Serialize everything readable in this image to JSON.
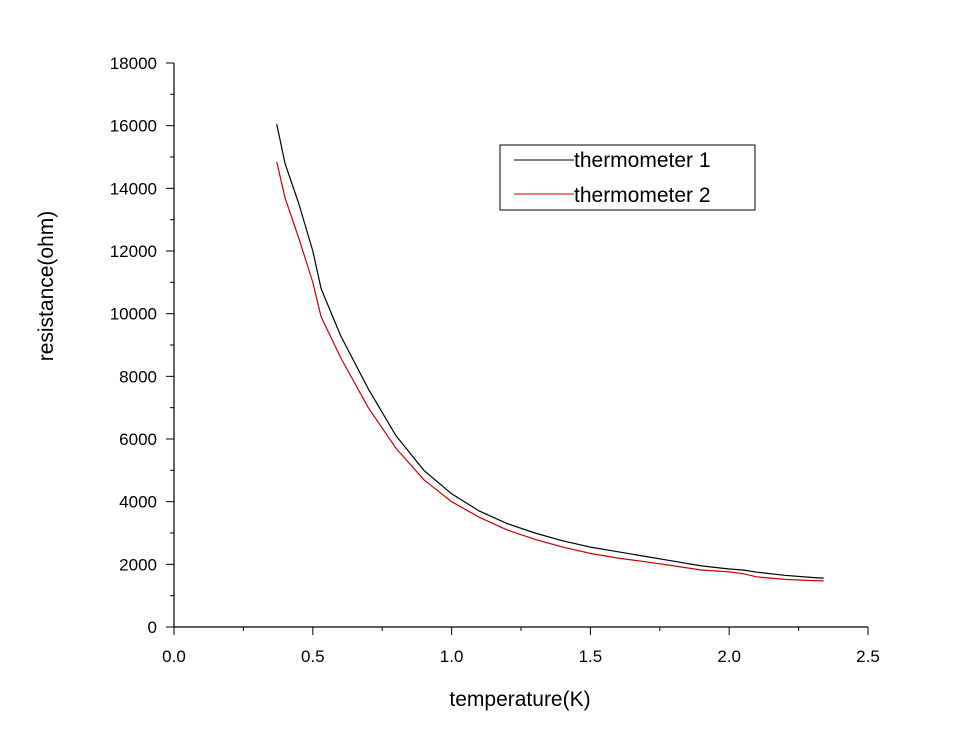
{
  "chart_data": {
    "type": "line",
    "title": "",
    "xlabel": "temperature(K)",
    "ylabel": "resistance(ohm)",
    "xlim": [
      0,
      2.5
    ],
    "ylim": [
      0,
      18000
    ],
    "x_ticks": [
      0.0,
      0.5,
      1.0,
      1.5,
      2.0,
      2.5
    ],
    "x_tick_labels": [
      "0.0",
      "0.5",
      "1.0",
      "1.5",
      "2.0",
      "2.5"
    ],
    "y_ticks": [
      0,
      2000,
      4000,
      6000,
      8000,
      10000,
      12000,
      14000,
      16000,
      18000
    ],
    "y_tick_labels": [
      "0",
      "2000",
      "4000",
      "6000",
      "8000",
      "10000",
      "12000",
      "14000",
      "16000",
      "18000"
    ],
    "grid": false,
    "legend_position": "top-right",
    "series": [
      {
        "name": "thermometer 1",
        "color": "#000000",
        "x": [
          0.37,
          0.4,
          0.45,
          0.5,
          0.53,
          0.6,
          0.7,
          0.8,
          0.9,
          1.0,
          1.1,
          1.2,
          1.3,
          1.4,
          1.5,
          1.6,
          1.7,
          1.8,
          1.9,
          2.0,
          2.05,
          2.1,
          2.2,
          2.3,
          2.34
        ],
        "y": [
          16050,
          14800,
          13500,
          12000,
          10800,
          9300,
          7600,
          6100,
          5000,
          4250,
          3700,
          3300,
          3000,
          2750,
          2550,
          2400,
          2250,
          2100,
          1950,
          1850,
          1820,
          1750,
          1650,
          1580,
          1560
        ]
      },
      {
        "name": "thermometer 2",
        "color": "#cc0000",
        "x": [
          0.37,
          0.4,
          0.45,
          0.5,
          0.53,
          0.6,
          0.7,
          0.8,
          0.9,
          1.0,
          1.1,
          1.2,
          1.3,
          1.4,
          1.5,
          1.6,
          1.7,
          1.8,
          1.9,
          2.0,
          2.05,
          2.1,
          2.2,
          2.3,
          2.34
        ],
        "y": [
          14850,
          13700,
          12400,
          11000,
          9900,
          8600,
          7000,
          5700,
          4700,
          4000,
          3500,
          3100,
          2800,
          2550,
          2350,
          2200,
          2080,
          1950,
          1820,
          1760,
          1700,
          1600,
          1520,
          1480,
          1470
        ]
      }
    ]
  }
}
